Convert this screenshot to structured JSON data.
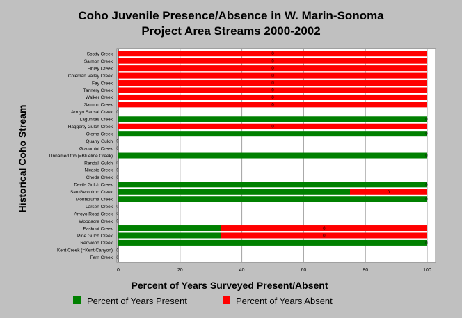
{
  "chart_data": {
    "type": "bar",
    "orientation": "horizontal",
    "stacked": true,
    "title_line1": "Coho Juvenile Presence/Absence in W. Marin-Sonoma",
    "title_line2": "Project Area Streams 2000-2002",
    "xlabel": "Percent of Years Surveyed Present/Absent",
    "ylabel": "Historical Coho Stream",
    "xlim": [
      0,
      100
    ],
    "xticks": [
      "0",
      "20",
      "40",
      "60",
      "80",
      "100"
    ],
    "grid": "vertical",
    "legend_position": "bottom",
    "categories": [
      "Scotty Creek",
      "Salmon Creek",
      "Finley Creek",
      "Coleman Valley Creek",
      "Fay Creek",
      "Tannery Creek",
      "Walker Creek",
      "Salmon Creek",
      "Arroyo Sausal Creek",
      "Lagunitas Creek",
      "Haggerty Gulch Creek",
      "Olema Creek",
      "Quarry Gulch",
      "Giacomini Creek",
      "Unnamed trib (=Blueline Creek)",
      "Randall Gulch",
      "Nicasio Creek",
      "Cheda Creek",
      "Devils Gulch Creek",
      "San Geronimo Creek",
      "Montezuma Creek",
      "Larsen Creek",
      "Arroyo Road Creek",
      "Woodacre Creek",
      "Easkoot Creek",
      "Pine Gulch Creek",
      "Redwood Creek",
      "Kent Creek (=Kent Canyon)",
      "Fern Creek"
    ],
    "series": [
      {
        "name": "Percent of Years Present",
        "color": "#008000",
        "values": [
          0,
          0,
          0,
          0,
          0,
          0,
          0,
          0,
          0,
          100,
          0,
          100,
          0,
          0,
          100,
          0,
          0,
          0,
          100,
          75,
          100,
          0,
          0,
          0,
          33.3,
          33.3,
          100,
          0,
          0
        ]
      },
      {
        "name": "Percent of Years Absent",
        "color": "#ff0000",
        "values": [
          100,
          100,
          100,
          100,
          100,
          100,
          100,
          100,
          0,
          0,
          100,
          0,
          0,
          0,
          0,
          0,
          0,
          0,
          0,
          25,
          0,
          0,
          0,
          0,
          66.7,
          66.7,
          0,
          0,
          0
        ]
      }
    ],
    "data_labels": [
      "0",
      "0",
      "0",
      "0",
      "0",
      "0",
      "0",
      "0",
      "0",
      "0",
      "0",
      "0",
      "0",
      "0",
      "0",
      "0",
      "0",
      "0",
      "0",
      "0",
      "0",
      "0",
      "0",
      "0",
      "0",
      "0",
      "0",
      "0",
      "0"
    ]
  }
}
